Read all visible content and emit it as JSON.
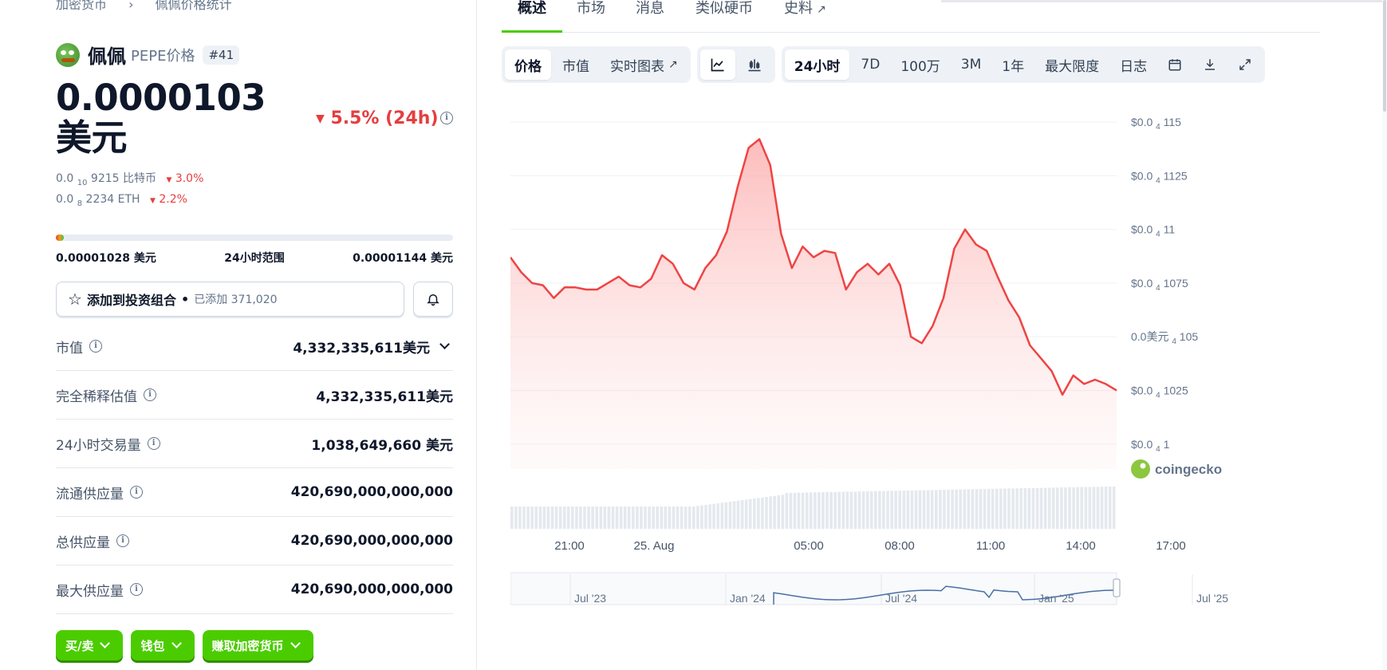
{
  "breadcrumb": {
    "items": [
      "加密货币",
      "佩佩价格统计"
    ]
  },
  "coin": {
    "name": "佩佩",
    "symbol_label": "PEPE价格",
    "rank": "#41",
    "price": "0.0000103 美元",
    "change_24h": "5.5% (24h)",
    "btc_price_prefix": "0.0",
    "btc_price_sub": "10",
    "btc_price_rest": "9215 比特币",
    "btc_change": "3.0%",
    "eth_price_prefix": "0.0",
    "eth_price_sub": "8",
    "eth_price_rest": "2234 ETH",
    "eth_change": "2.2%"
  },
  "range_24h": {
    "low": "0.00001028 美元",
    "label": "24小时范围",
    "high": "0.00001144 美元",
    "position": 0.02
  },
  "portfolio": {
    "label": "添加到投资组合",
    "separator": "•",
    "added": "已添加 371,020"
  },
  "stats": [
    {
      "label": "市值",
      "value": "4,332,335,611美元"
    },
    {
      "label": "完全稀释估值",
      "value": "4,332,335,611美元"
    },
    {
      "label": "24小时交易量",
      "value": "1,038,649,660 美元"
    },
    {
      "label": "流通供应量",
      "value": "420,690,000,000,000"
    },
    {
      "label": "总供应量",
      "value": "420,690,000,000,000"
    },
    {
      "label": "最大供应量",
      "value": "420,690,000,000,000"
    }
  ],
  "actions": [
    "买/卖",
    "钱包",
    "赚取加密货币"
  ],
  "tabs": [
    "概述",
    "市场",
    "消息",
    "类似硬币",
    "史料"
  ],
  "toolbar": {
    "view": [
      "价格",
      "市值",
      "实时图表"
    ],
    "ranges": [
      "24小时",
      "7D",
      "100万",
      "3M",
      "1年",
      "最大限度",
      "日志"
    ]
  },
  "chart_data": {
    "type": "line",
    "x_ticks": [
      "21:00",
      "25. Aug",
      "05:00",
      "08:00",
      "11:00",
      "14:00",
      "17:00"
    ],
    "y_ticks": [
      {
        "prefix": "$0.0",
        "sub": "4",
        "rest": "115"
      },
      {
        "prefix": "$0.0",
        "sub": "4",
        "rest": "1125"
      },
      {
        "prefix": "$0.0",
        "sub": "4",
        "rest": "11"
      },
      {
        "prefix": "$0.0",
        "sub": "4",
        "rest": "1075"
      },
      {
        "prefix": "0.0美元",
        "sub": "4",
        "rest": "105"
      },
      {
        "prefix": "$0.0",
        "sub": "4",
        "rest": "1025"
      },
      {
        "prefix": "$0.0",
        "sub": "4",
        "rest": "1"
      }
    ],
    "ylim": [
      1e-05,
      1.15e-05
    ],
    "values": [
      1.087e-05,
      1.08e-05,
      1.075e-05,
      1.074e-05,
      1.068e-05,
      1.073e-05,
      1.073e-05,
      1.072e-05,
      1.072e-05,
      1.075e-05,
      1.078e-05,
      1.074e-05,
      1.073e-05,
      1.077e-05,
      1.088e-05,
      1.084e-05,
      1.075e-05,
      1.072e-05,
      1.082e-05,
      1.088e-05,
      1.099e-05,
      1.12e-05,
      1.138e-05,
      1.142e-05,
      1.13e-05,
      1.098e-05,
      1.082e-05,
      1.092e-05,
      1.087e-05,
      1.09e-05,
      1.089e-05,
      1.072e-05,
      1.08e-05,
      1.084e-05,
      1.079e-05,
      1.084e-05,
      1.074e-05,
      1.05e-05,
      1.047e-05,
      1.055e-05,
      1.068e-05,
      1.091e-05,
      1.1e-05,
      1.093e-05,
      1.09e-05,
      1.078e-05,
      1.067e-05,
      1.059e-05,
      1.046e-05,
      1.04e-05,
      1.034e-05,
      1.023e-05,
      1.032e-05,
      1.028e-05,
      1.03e-05,
      1.028e-05,
      1.025e-05
    ],
    "volume_label": "Volume",
    "mini_ticks": [
      "Jul '23",
      "Jan '24",
      "Jul '24",
      "Jan '25",
      "Jul '25"
    ],
    "line_color": "#ef4444",
    "watermark": "coingecko"
  },
  "colors": {
    "accent": "#4bcc00",
    "down": "#e53e3e"
  }
}
